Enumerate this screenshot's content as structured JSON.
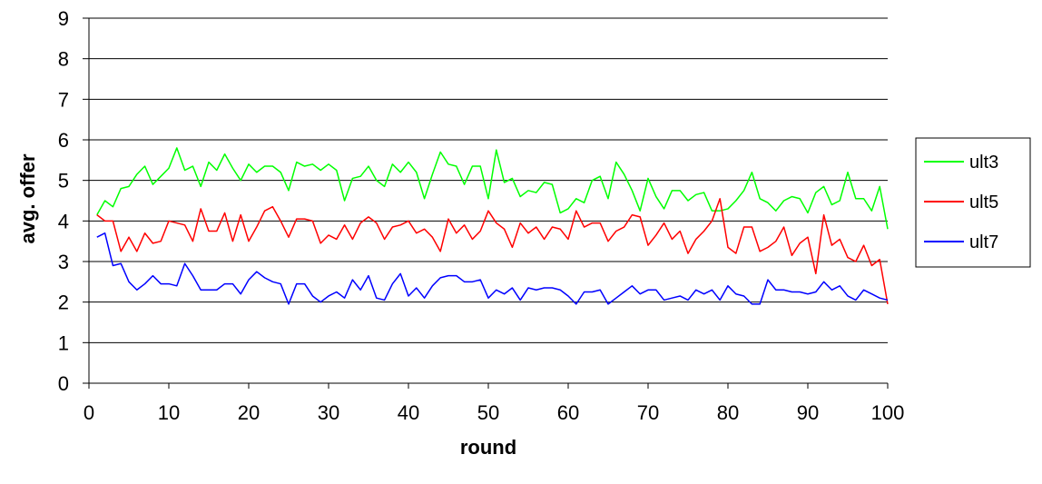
{
  "chart_data": {
    "type": "line",
    "title": "",
    "xlabel": "round",
    "ylabel": "avg. offer",
    "xlim": [
      0,
      100
    ],
    "ylim": [
      0,
      9
    ],
    "xticks": [
      0,
      10,
      20,
      30,
      40,
      50,
      60,
      70,
      80,
      90,
      100
    ],
    "yticks": [
      0,
      1,
      2,
      3,
      4,
      5,
      6,
      7,
      8,
      9
    ],
    "grid": "horizontal",
    "legend_position": "right",
    "x": [
      1,
      2,
      3,
      4,
      5,
      6,
      7,
      8,
      9,
      10,
      11,
      12,
      13,
      14,
      15,
      16,
      17,
      18,
      19,
      20,
      21,
      22,
      23,
      24,
      25,
      26,
      27,
      28,
      29,
      30,
      31,
      32,
      33,
      34,
      35,
      36,
      37,
      38,
      39,
      40,
      41,
      42,
      43,
      44,
      45,
      46,
      47,
      48,
      49,
      50,
      51,
      52,
      53,
      54,
      55,
      56,
      57,
      58,
      59,
      60,
      61,
      62,
      63,
      64,
      65,
      66,
      67,
      68,
      69,
      70,
      71,
      72,
      73,
      74,
      75,
      76,
      77,
      78,
      79,
      80,
      81,
      82,
      83,
      84,
      85,
      86,
      87,
      88,
      89,
      90,
      91,
      92,
      93,
      94,
      95,
      96,
      97,
      98,
      99,
      100
    ],
    "series": [
      {
        "name": "ult3",
        "color": "#00ff00",
        "values": [
          4.15,
          4.5,
          4.35,
          4.8,
          4.85,
          5.15,
          5.35,
          4.9,
          5.1,
          5.3,
          5.8,
          5.25,
          5.35,
          4.85,
          5.45,
          5.25,
          5.65,
          5.3,
          5.0,
          5.4,
          5.2,
          5.35,
          5.35,
          5.2,
          4.75,
          5.45,
          5.35,
          5.4,
          5.25,
          5.4,
          5.25,
          4.5,
          5.05,
          5.1,
          5.35,
          5.0,
          4.85,
          5.4,
          5.2,
          5.45,
          5.2,
          4.55,
          5.15,
          5.7,
          5.4,
          5.35,
          4.9,
          5.35,
          5.35,
          4.55,
          5.75,
          4.95,
          5.05,
          4.6,
          4.75,
          4.7,
          4.95,
          4.9,
          4.2,
          4.3,
          4.55,
          4.45,
          5.0,
          5.1,
          4.55,
          5.45,
          5.15,
          4.75,
          4.25,
          5.05,
          4.6,
          4.3,
          4.75,
          4.75,
          4.5,
          4.65,
          4.7,
          4.25,
          4.25,
          4.3,
          4.5,
          4.75,
          5.2,
          4.55,
          4.45,
          4.25,
          4.5,
          4.6,
          4.55,
          4.2,
          4.7,
          4.85,
          4.4,
          4.5,
          5.2,
          4.55,
          4.55,
          4.25,
          4.85,
          3.8
        ]
      },
      {
        "name": "ult5",
        "color": "#ff0000",
        "values": [
          4.15,
          4.0,
          4.0,
          3.25,
          3.6,
          3.25,
          3.7,
          3.45,
          3.5,
          4.0,
          3.95,
          3.9,
          3.5,
          4.3,
          3.75,
          3.75,
          4.2,
          3.5,
          4.15,
          3.5,
          3.85,
          4.25,
          4.35,
          4.0,
          3.6,
          4.05,
          4.05,
          4.0,
          3.45,
          3.65,
          3.55,
          3.9,
          3.55,
          3.95,
          4.1,
          3.95,
          3.55,
          3.85,
          3.9,
          4.0,
          3.7,
          3.8,
          3.6,
          3.25,
          4.05,
          3.7,
          3.9,
          3.55,
          3.75,
          4.25,
          3.95,
          3.8,
          3.35,
          3.95,
          3.7,
          3.85,
          3.55,
          3.85,
          3.8,
          3.55,
          4.25,
          3.85,
          3.95,
          3.95,
          3.5,
          3.75,
          3.85,
          4.15,
          4.1,
          3.4,
          3.65,
          3.95,
          3.55,
          3.75,
          3.2,
          3.55,
          3.75,
          4.0,
          4.55,
          3.35,
          3.2,
          3.85,
          3.85,
          3.25,
          3.35,
          3.5,
          3.85,
          3.15,
          3.45,
          3.6,
          2.7,
          4.15,
          3.4,
          3.55,
          3.1,
          3.0,
          3.4,
          2.9,
          3.05,
          1.95
        ]
      },
      {
        "name": "ult7",
        "color": "#0000ff",
        "values": [
          3.6,
          3.7,
          2.9,
          2.95,
          2.5,
          2.3,
          2.45,
          2.65,
          2.45,
          2.45,
          2.4,
          2.95,
          2.65,
          2.3,
          2.3,
          2.3,
          2.45,
          2.45,
          2.2,
          2.55,
          2.75,
          2.6,
          2.5,
          2.45,
          1.95,
          2.45,
          2.45,
          2.15,
          2.0,
          2.15,
          2.25,
          2.1,
          2.55,
          2.3,
          2.65,
          2.1,
          2.05,
          2.45,
          2.7,
          2.15,
          2.35,
          2.1,
          2.4,
          2.6,
          2.65,
          2.65,
          2.5,
          2.5,
          2.55,
          2.1,
          2.3,
          2.2,
          2.35,
          2.05,
          2.35,
          2.3,
          2.35,
          2.35,
          2.3,
          2.15,
          1.95,
          2.25,
          2.25,
          2.3,
          1.95,
          2.1,
          2.25,
          2.4,
          2.2,
          2.3,
          2.3,
          2.05,
          2.1,
          2.15,
          2.05,
          2.3,
          2.2,
          2.3,
          2.05,
          2.4,
          2.2,
          2.15,
          1.95,
          1.95,
          2.55,
          2.3,
          2.3,
          2.25,
          2.25,
          2.2,
          2.25,
          2.5,
          2.3,
          2.4,
          2.15,
          2.05,
          2.3,
          2.2,
          2.1,
          2.05
        ]
      }
    ]
  }
}
